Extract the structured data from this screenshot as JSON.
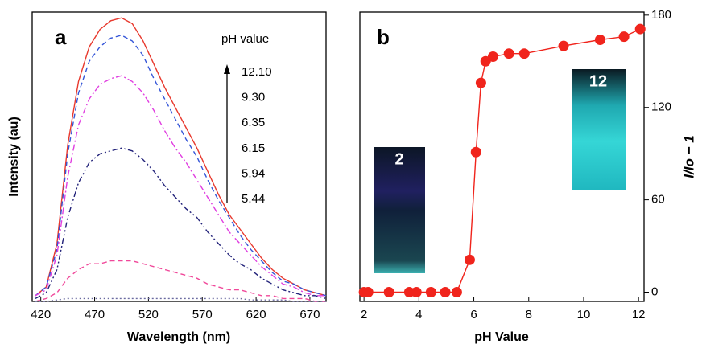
{
  "chart_data": [
    {
      "type": "line",
      "panel_label": "a",
      "x_label": "Wavelength (nm)",
      "y_label": "Intensity (au)",
      "legend_title": "pH value",
      "x": [
        415,
        425,
        435,
        445,
        455,
        465,
        475,
        485,
        495,
        505,
        515,
        525,
        535,
        545,
        555,
        565,
        575,
        585,
        595,
        605,
        615,
        625,
        635,
        645,
        655,
        665,
        675,
        685
      ],
      "xlim": [
        412,
        685
      ],
      "xticks": [
        420,
        470,
        520,
        570,
        620,
        670
      ],
      "ylim": [
        0,
        100
      ],
      "series": [
        {
          "name": "12.10",
          "color": "#e8392e",
          "dash": "solid",
          "values": [
            2,
            5,
            20,
            54,
            76,
            88,
            94,
            97,
            98,
            96,
            90,
            82,
            74,
            67,
            60,
            53,
            45,
            37,
            30,
            25,
            20,
            15,
            11,
            8,
            6,
            4,
            3,
            2
          ]
        },
        {
          "name": "9.30",
          "color": "#3556d8",
          "dash": "dashed",
          "values": [
            2,
            5,
            18,
            51,
            72,
            83,
            88,
            91,
            92,
            90,
            85,
            77,
            70,
            63,
            56,
            50,
            42,
            35,
            29,
            23,
            18,
            14,
            10,
            7,
            6,
            4,
            3,
            2
          ]
        },
        {
          "name": "6.35",
          "color": "#e03ee0",
          "dash": "dashdot",
          "values": [
            2,
            4,
            16,
            43,
            61,
            70,
            75,
            77,
            78,
            76,
            72,
            66,
            59,
            53,
            48,
            42,
            36,
            30,
            24,
            20,
            16,
            12,
            9,
            6,
            5,
            3,
            2,
            2
          ]
        },
        {
          "name": "6.15",
          "color": "#23237a",
          "dash": "dashdotdot",
          "values": [
            1,
            3,
            11,
            29,
            41,
            48,
            51,
            52,
            53,
            52,
            49,
            45,
            40,
            36,
            32,
            29,
            24,
            20,
            16,
            13,
            11,
            8,
            6,
            4,
            3,
            2,
            2,
            1
          ]
        },
        {
          "name": "5.94",
          "color": "#f0489a",
          "dash": "dashed",
          "values": [
            0,
            1,
            3,
            8,
            11,
            13,
            13,
            14,
            14,
            14,
            13,
            12,
            11,
            10,
            9,
            8,
            6,
            5,
            4,
            4,
            3,
            2,
            2,
            1,
            1,
            1,
            0,
            0
          ]
        },
        {
          "name": "5.44",
          "color": "#6a6aa0",
          "dash": "dotted",
          "values": [
            0,
            0,
            0.5,
            1,
            1,
            1,
            1,
            1,
            1,
            1,
            1,
            1,
            1,
            1,
            1,
            1,
            1,
            1,
            1,
            1,
            0.5,
            0.5,
            0.5,
            0.5,
            0,
            0,
            0,
            0
          ]
        }
      ]
    },
    {
      "type": "line",
      "markers": true,
      "panel_label": "b",
      "x_label": "pH Value",
      "y_label": "I/Io − 1",
      "annotations": [
        "2",
        "12"
      ],
      "x": [
        2.0,
        2.15,
        2.91,
        3.65,
        3.91,
        4.44,
        4.96,
        5.38,
        5.85,
        6.08,
        6.26,
        6.43,
        6.7,
        7.28,
        7.84,
        9.27,
        10.6,
        11.47,
        12.06
      ],
      "xlim": [
        1.85,
        12.2
      ],
      "xticks": [
        2,
        4,
        6,
        8,
        10,
        12
      ],
      "ylim": [
        -6,
        182
      ],
      "yticks": [
        0,
        60,
        120,
        180
      ],
      "series": [
        {
          "color": "#f0241c",
          "values": [
            0,
            0,
            0,
            0,
            0,
            0,
            0,
            0,
            21,
            91,
            136,
            150,
            153,
            155,
            155,
            160,
            164,
            166,
            171
          ]
        }
      ]
    }
  ]
}
